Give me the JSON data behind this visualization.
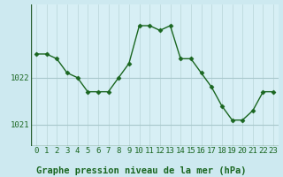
{
  "x": [
    0,
    1,
    2,
    3,
    4,
    5,
    6,
    7,
    8,
    9,
    10,
    11,
    12,
    13,
    14,
    15,
    16,
    17,
    18,
    19,
    20,
    21,
    22,
    23
  ],
  "y": [
    1022.5,
    1022.5,
    1022.4,
    1022.1,
    1022.0,
    1021.7,
    1021.7,
    1021.7,
    1022.0,
    1022.3,
    1023.1,
    1023.1,
    1023.0,
    1023.1,
    1022.4,
    1022.4,
    1022.1,
    1021.8,
    1021.4,
    1021.1,
    1021.1,
    1021.3,
    1021.7,
    1021.7
  ],
  "line_color": "#1a6620",
  "marker_color": "#1a6620",
  "bg_color": "#cde9f0",
  "plot_bg_color": "#d7eff5",
  "grid_color_v": "#b8d4d8",
  "grid_color_h": "#a8c8cc",
  "label_color": "#1a6620",
  "bottom_bar_color": "#2a6030",
  "title": "Graphe pression niveau de la mer (hPa)",
  "ylim": [
    1020.55,
    1023.55
  ],
  "yticks": [
    1021,
    1022
  ],
  "xlim": [
    -0.5,
    23.5
  ],
  "xticks": [
    0,
    1,
    2,
    3,
    4,
    5,
    6,
    7,
    8,
    9,
    10,
    11,
    12,
    13,
    14,
    15,
    16,
    17,
    18,
    19,
    20,
    21,
    22,
    23
  ],
  "title_fontsize": 7.5,
  "tick_fontsize": 6.5,
  "marker_size": 2.5,
  "line_width": 1.0
}
